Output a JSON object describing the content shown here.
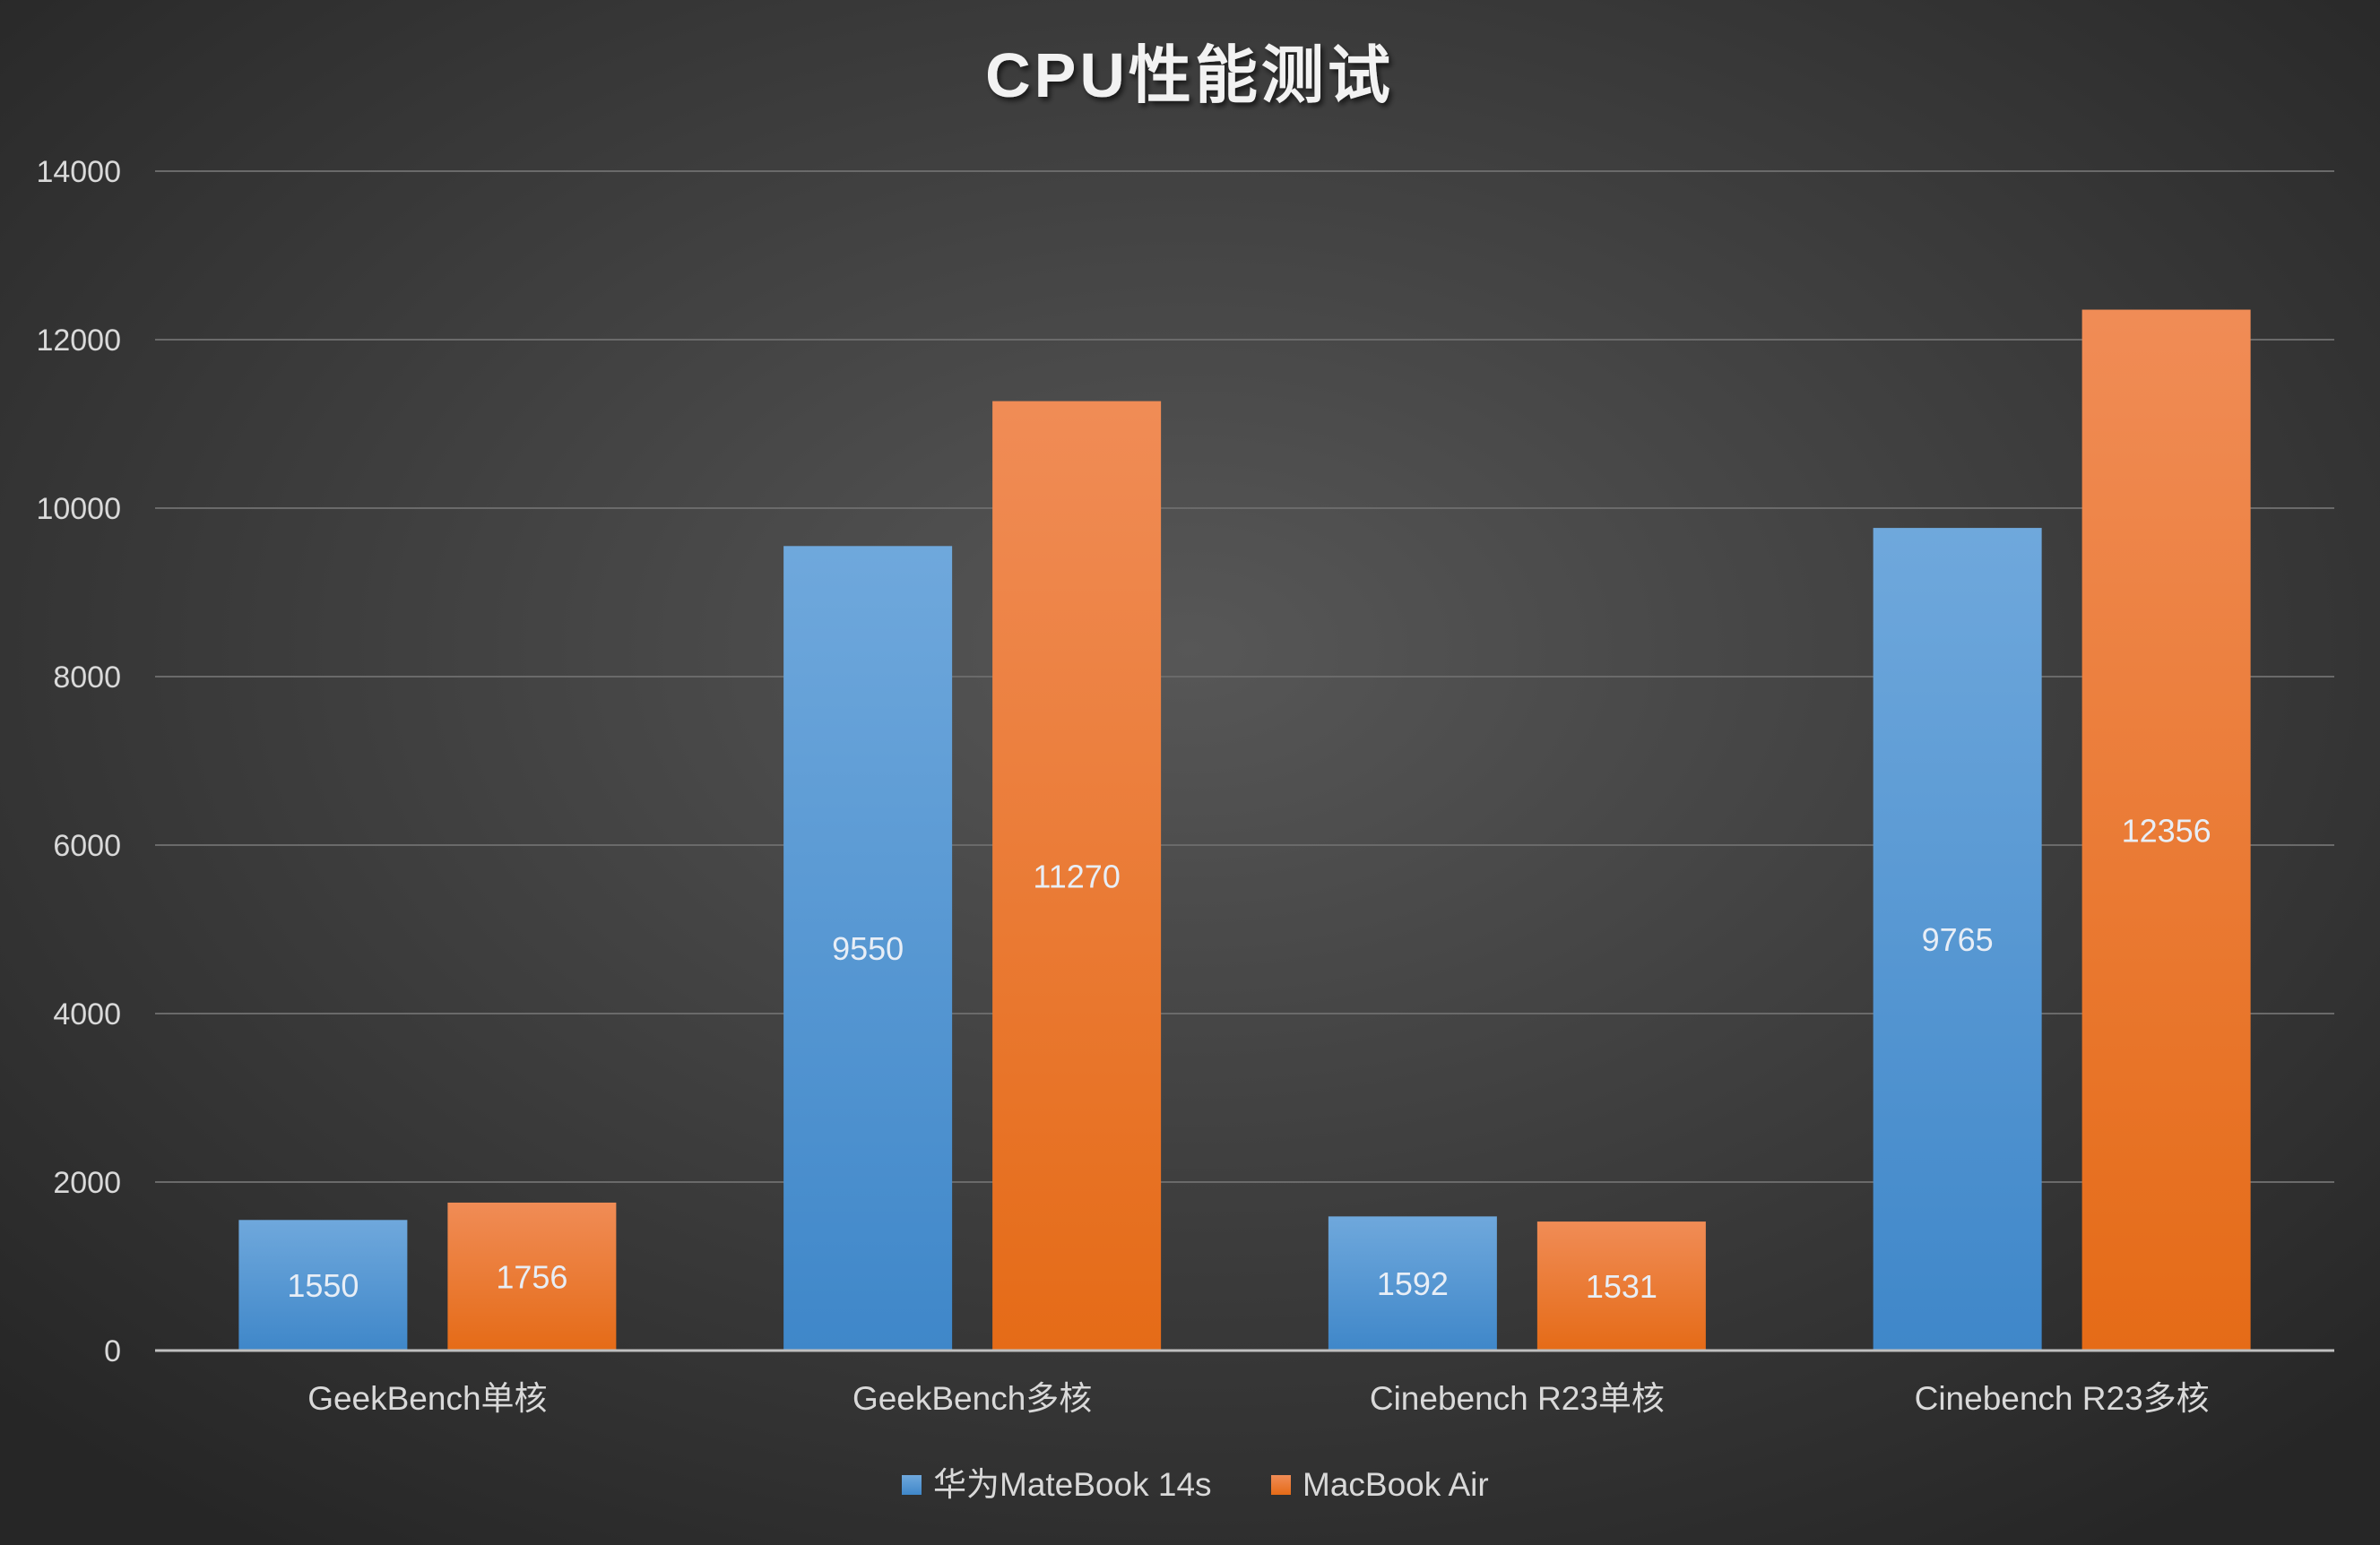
{
  "chart_data": {
    "type": "bar",
    "title": "CPU性能测试",
    "categories": [
      "GeekBench单核",
      "GeekBench多核",
      "Cinebench R23单核",
      "Cinebench R23多核"
    ],
    "series": [
      {
        "name": "华为MateBook 14s",
        "values": [
          1550,
          9550,
          1592,
          9765
        ],
        "color": "#5b9bd5"
      },
      {
        "name": "MacBook Air",
        "values": [
          1756,
          11270,
          1531,
          12356
        ],
        "color": "#ed7d31"
      }
    ],
    "ylim": [
      0,
      14000
    ],
    "yticks": [
      0,
      2000,
      4000,
      6000,
      8000,
      10000,
      12000,
      14000
    ],
    "xlabel": "",
    "ylabel": "",
    "grid": true,
    "legend": "bottom",
    "data_labels": true,
    "background": "#2b2b2b"
  }
}
